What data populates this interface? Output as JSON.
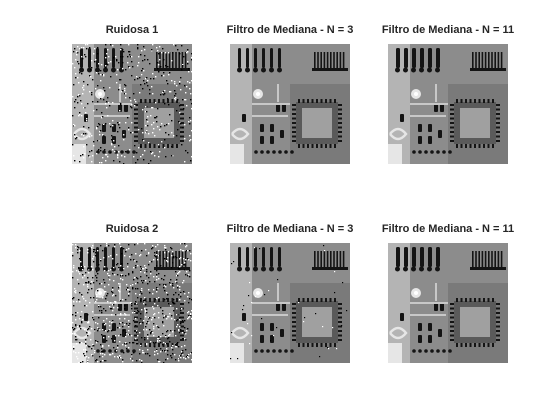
{
  "figure": {
    "panels": [
      {
        "title": "Ruidosa 1",
        "noise": "salt-pepper-medium",
        "filter": "none"
      },
      {
        "title": "Filtro de Mediana - N = 3",
        "noise": "salt-pepper-medium",
        "filter": "median-3"
      },
      {
        "title": "Filtro de Mediana - N = 11",
        "noise": "salt-pepper-medium",
        "filter": "median-11"
      },
      {
        "title": "Ruidosa 2",
        "noise": "salt-pepper-heavy",
        "filter": "none"
      },
      {
        "title": "Filtro de Mediana - N = 3",
        "noise": "salt-pepper-heavy",
        "filter": "median-3"
      },
      {
        "title": "Filtro de Mediana - N = 11",
        "noise": "salt-pepper-heavy",
        "filter": "median-11"
      }
    ]
  },
  "colors": {
    "background": "#ffffff",
    "title": "#262626",
    "board": "#8c8c8c",
    "chip": "#5a5a5a",
    "dark": "#141414",
    "light": "#e6e6e6"
  }
}
